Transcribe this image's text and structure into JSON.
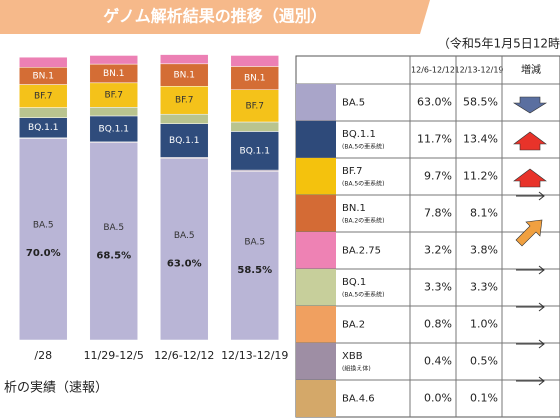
{
  "header": {
    "title": "ゲノム解析結果の推移（週別）",
    "date": "（令和5年1月5日12時"
  },
  "chart_data": {
    "type": "bar",
    "stacked": true,
    "categories": [
      "/28",
      "11/29-12/5",
      "12/6-12/12",
      "12/13-12/19"
    ],
    "ylim": [
      0,
      100
    ],
    "series": [
      {
        "name": "BA.5",
        "color": "#b9b5d6",
        "values": [
          70.0,
          68.5,
          63.0,
          58.5
        ],
        "value_labels": [
          "70.0%",
          "68.5%",
          "63.0%",
          "58.5%"
        ]
      },
      {
        "name": "XBB",
        "color": "#a898ad",
        "values": [
          0.2,
          0.3,
          0.4,
          0.5
        ]
      },
      {
        "name": "BQ.1.1",
        "color": "#2f4c7c",
        "values": [
          7.0,
          9.0,
          11.7,
          13.4
        ]
      },
      {
        "name": "BQ.1",
        "color": "#b9c48f",
        "values": [
          3.5,
          3.0,
          3.3,
          3.3
        ]
      },
      {
        "name": "BF.7",
        "color": "#f4c21a",
        "values": [
          8.0,
          8.5,
          9.7,
          11.2
        ]
      },
      {
        "name": "BN.1",
        "color": "#d46d35",
        "values": [
          6.0,
          6.5,
          7.8,
          8.1
        ]
      },
      {
        "name": "BA.2.75",
        "color": "#ec80b4",
        "values": [
          3.5,
          3.0,
          3.2,
          3.8
        ]
      }
    ]
  },
  "footer": "析の実績（速報）",
  "table": {
    "columns": [
      "12/6-12/12",
      "12/13-12/19",
      "増減"
    ],
    "rows": [
      {
        "name": "BA.5",
        "color": "#a9a5c9",
        "cells": [
          "63.0%",
          "58.5%"
        ]
      },
      {
        "name": "BQ.1.1",
        "note": "(BA.5の亜系統)",
        "color": "#2e4a7a",
        "cells": [
          "11.7%",
          "13.4%"
        ]
      },
      {
        "name": "BF.7",
        "note": "(BA.5の亜系統)",
        "color": "#f4c20d",
        "cells": [
          "9.7%",
          "11.2%"
        ]
      },
      {
        "name": "BN.1",
        "note": "(BA.2の亜系統)",
        "color": "#d46b35",
        "cells": [
          "7.8%",
          "8.1%"
        ]
      },
      {
        "name": "BA.2.75",
        "color": "#ee82b4",
        "cells": [
          "3.2%",
          "3.8%"
        ]
      },
      {
        "name": "BQ.1",
        "note": "(BA.5の亜系統)",
        "color": "#c7cf9b",
        "cells": [
          "3.3%",
          "3.3%"
        ]
      },
      {
        "name": "BA.2",
        "color": "#f0a060",
        "cells": [
          "0.8%",
          "1.0%"
        ]
      },
      {
        "name": "XBB",
        "note": "(組換え体)",
        "color": "#9e8ea4",
        "cells": [
          "0.4%",
          "0.5%"
        ]
      },
      {
        "name": "BA.4.6",
        "color": "#d4a869",
        "cells": [
          "0.0%",
          "0.1%"
        ]
      }
    ]
  }
}
